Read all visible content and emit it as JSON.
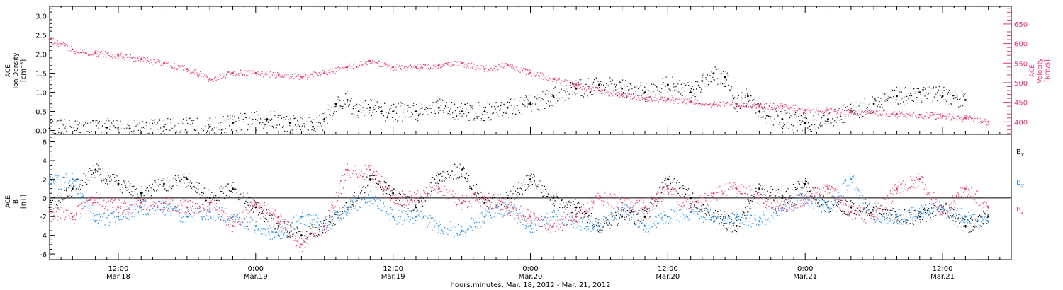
{
  "chart_data": [
    {
      "type": "scatter",
      "panel": "top",
      "ylabel_lines": [
        "ACE",
        "Ion Density",
        "[cm⁻³]"
      ],
      "y2label_lines": [
        "ACE",
        "Velocity",
        "[km/s]"
      ],
      "ylim": [
        -0.1,
        3.25
      ],
      "yticks": [
        "0.0",
        "0.5",
        "1.0",
        "1.5",
        "2.0",
        "2.5",
        "3.0"
      ],
      "ytick_values": [
        0.0,
        0.5,
        1.0,
        1.5,
        2.0,
        2.5,
        3.0
      ],
      "y2lim": [
        368,
        695
      ],
      "y2ticks": [
        "400",
        "450",
        "500",
        "550",
        "600",
        "650"
      ],
      "y2tick_values": [
        400,
        450,
        500,
        550,
        600,
        650
      ],
      "x_hours_range": [
        6,
        90
      ],
      "series": [
        {
          "color": "#000000",
          "axis": "left",
          "x_hours": [
            6,
            11,
            13,
            16,
            20,
            22,
            25,
            27,
            29,
            30,
            31,
            32,
            33,
            34,
            35,
            36,
            38,
            40,
            42,
            44,
            46,
            48,
            50,
            52,
            54,
            56,
            58,
            60,
            62,
            63,
            64,
            65,
            66,
            67,
            68,
            70,
            72,
            74,
            76,
            78,
            80,
            82,
            84,
            86
          ],
          "values": [
            0.05,
            0.08,
            0.05,
            0.1,
            0.1,
            0.2,
            0.3,
            0.2,
            0.1,
            0.3,
            0.7,
            0.8,
            0.5,
            0.6,
            0.5,
            0.5,
            0.5,
            0.6,
            0.5,
            0.5,
            0.6,
            0.7,
            0.9,
            1.1,
            1.2,
            1.1,
            1.0,
            1.2,
            1.0,
            1.3,
            1.5,
            1.4,
            0.7,
            0.9,
            0.5,
            0.3,
            0.2,
            0.3,
            0.5,
            0.7,
            0.9,
            1.0,
            0.9,
            0.8
          ]
        },
        {
          "color": "#e8356b",
          "axis": "right",
          "x_hours": [
            6,
            8,
            10,
            12,
            14,
            16,
            18,
            20,
            22,
            24,
            26,
            28,
            30,
            32,
            34,
            36,
            38,
            40,
            42,
            44,
            46,
            48,
            50,
            52,
            54,
            56,
            58,
            60,
            62,
            64,
            66,
            68,
            70,
            72,
            74,
            76,
            78,
            80,
            82,
            84,
            86,
            88
          ],
          "values": [
            610,
            585,
            575,
            570,
            560,
            550,
            535,
            510,
            525,
            525,
            520,
            515,
            525,
            540,
            555,
            540,
            540,
            545,
            550,
            535,
            545,
            525,
            510,
            495,
            480,
            470,
            460,
            458,
            452,
            445,
            445,
            440,
            440,
            430,
            430,
            425,
            425,
            420,
            418,
            415,
            410,
            400
          ]
        }
      ]
    },
    {
      "type": "scatter",
      "panel": "bottom",
      "ylabel_lines": [
        "ACE",
        "B",
        "[nT]"
      ],
      "ylim": [
        -6.6,
        6.8
      ],
      "yticks": [
        "-6",
        "-4",
        "-2",
        "0",
        "2",
        "4",
        "6"
      ],
      "ytick_values": [
        -6,
        -4,
        -2,
        0,
        2,
        4,
        6
      ],
      "zero_line": true,
      "series": [
        {
          "name": "Bx",
          "color": "#000000",
          "x_hours": [
            6,
            8,
            10,
            12,
            14,
            16,
            18,
            20,
            22,
            24,
            26,
            28,
            30,
            32,
            34,
            36,
            38,
            40,
            42,
            44,
            46,
            48,
            50,
            52,
            54,
            56,
            58,
            60,
            62,
            64,
            66,
            68,
            70,
            72,
            74,
            76,
            78,
            80,
            82,
            84,
            86,
            88
          ],
          "values": [
            -1,
            1,
            3,
            1.5,
            0.5,
            1.5,
            2,
            0,
            1,
            -1,
            -3,
            -4,
            -3,
            -1,
            2,
            0.5,
            -1,
            2.5,
            3,
            -0.5,
            0,
            2,
            0,
            -1,
            -3,
            -2,
            -2,
            2,
            0,
            -2,
            -3,
            1,
            0,
            1.5,
            -1,
            -1,
            -1,
            -2,
            -2,
            -1,
            -3,
            -2
          ]
        },
        {
          "name": "By",
          "color": "#1f8ee8",
          "x_hours": [
            6,
            8,
            10,
            12,
            14,
            16,
            18,
            20,
            22,
            24,
            26,
            28,
            30,
            32,
            34,
            36,
            38,
            40,
            42,
            44,
            46,
            48,
            50,
            52,
            54,
            56,
            58,
            60,
            62,
            64,
            66,
            68,
            70,
            72,
            74,
            76,
            78,
            80,
            82,
            84,
            86,
            88
          ],
          "values": [
            1.5,
            2,
            -2.5,
            -2,
            -1,
            -1,
            -2,
            -1.5,
            -2,
            -3,
            -4,
            -2,
            -3,
            -1,
            0,
            -2,
            -2,
            -3,
            -3.5,
            -2,
            -1,
            -3,
            -2,
            -2.5,
            -3,
            -1,
            -3,
            -2,
            -1.5,
            -2,
            -2,
            -2.5,
            -1,
            0,
            -1,
            2,
            -2,
            -2,
            -1.5,
            -1,
            -2,
            -2.5
          ]
        },
        {
          "name": "Bz",
          "color": "#e8356b",
          "x_hours": [
            6,
            8,
            10,
            12,
            14,
            16,
            18,
            20,
            22,
            24,
            26,
            28,
            30,
            32,
            34,
            36,
            38,
            40,
            42,
            44,
            46,
            48,
            50,
            52,
            54,
            56,
            58,
            60,
            62,
            64,
            66,
            68,
            70,
            72,
            74,
            76,
            78,
            80,
            82,
            84,
            86,
            88
          ],
          "values": [
            -1.5,
            -2,
            0,
            -1,
            -0.5,
            -0.5,
            -1,
            -0.5,
            -3,
            -0.5,
            -2,
            -5,
            -3,
            3,
            3,
            0,
            0,
            1,
            -0.5,
            0,
            -1,
            -2,
            -3,
            -2,
            0,
            -0.5,
            -1,
            1,
            -1,
            0.5,
            1,
            0,
            -1,
            0,
            1,
            -1.5,
            -2,
            1,
            2,
            -1.5,
            1,
            -1
          ]
        }
      ]
    }
  ],
  "x_axis": {
    "major_hours": [
      12,
      24,
      36,
      48,
      60,
      72,
      84
    ],
    "time_labels": [
      "12:00",
      "0:00",
      "12:00",
      "0:00",
      "12:00",
      "0:00",
      "12:00"
    ],
    "date_labels": [
      "Mar.18",
      "Mar.19",
      "Mar.19",
      "Mar.20",
      "Mar.20",
      "Mar.21",
      "Mar.21"
    ],
    "title": "hours:minutes, Mar. 18, 2012 - Mar. 21, 2012"
  },
  "legend": [
    {
      "base": "B",
      "sub": "x",
      "color": "#000000"
    },
    {
      "base": "B",
      "sub": "y",
      "color": "#1f8ee8"
    },
    {
      "base": "B",
      "sub": "z",
      "color": "#e8356b"
    }
  ],
  "colors": {
    "axis": "#000000",
    "velocity_axis": "#e8356b",
    "bx": "#000000",
    "by": "#1f8ee8",
    "bz": "#e8356b"
  }
}
